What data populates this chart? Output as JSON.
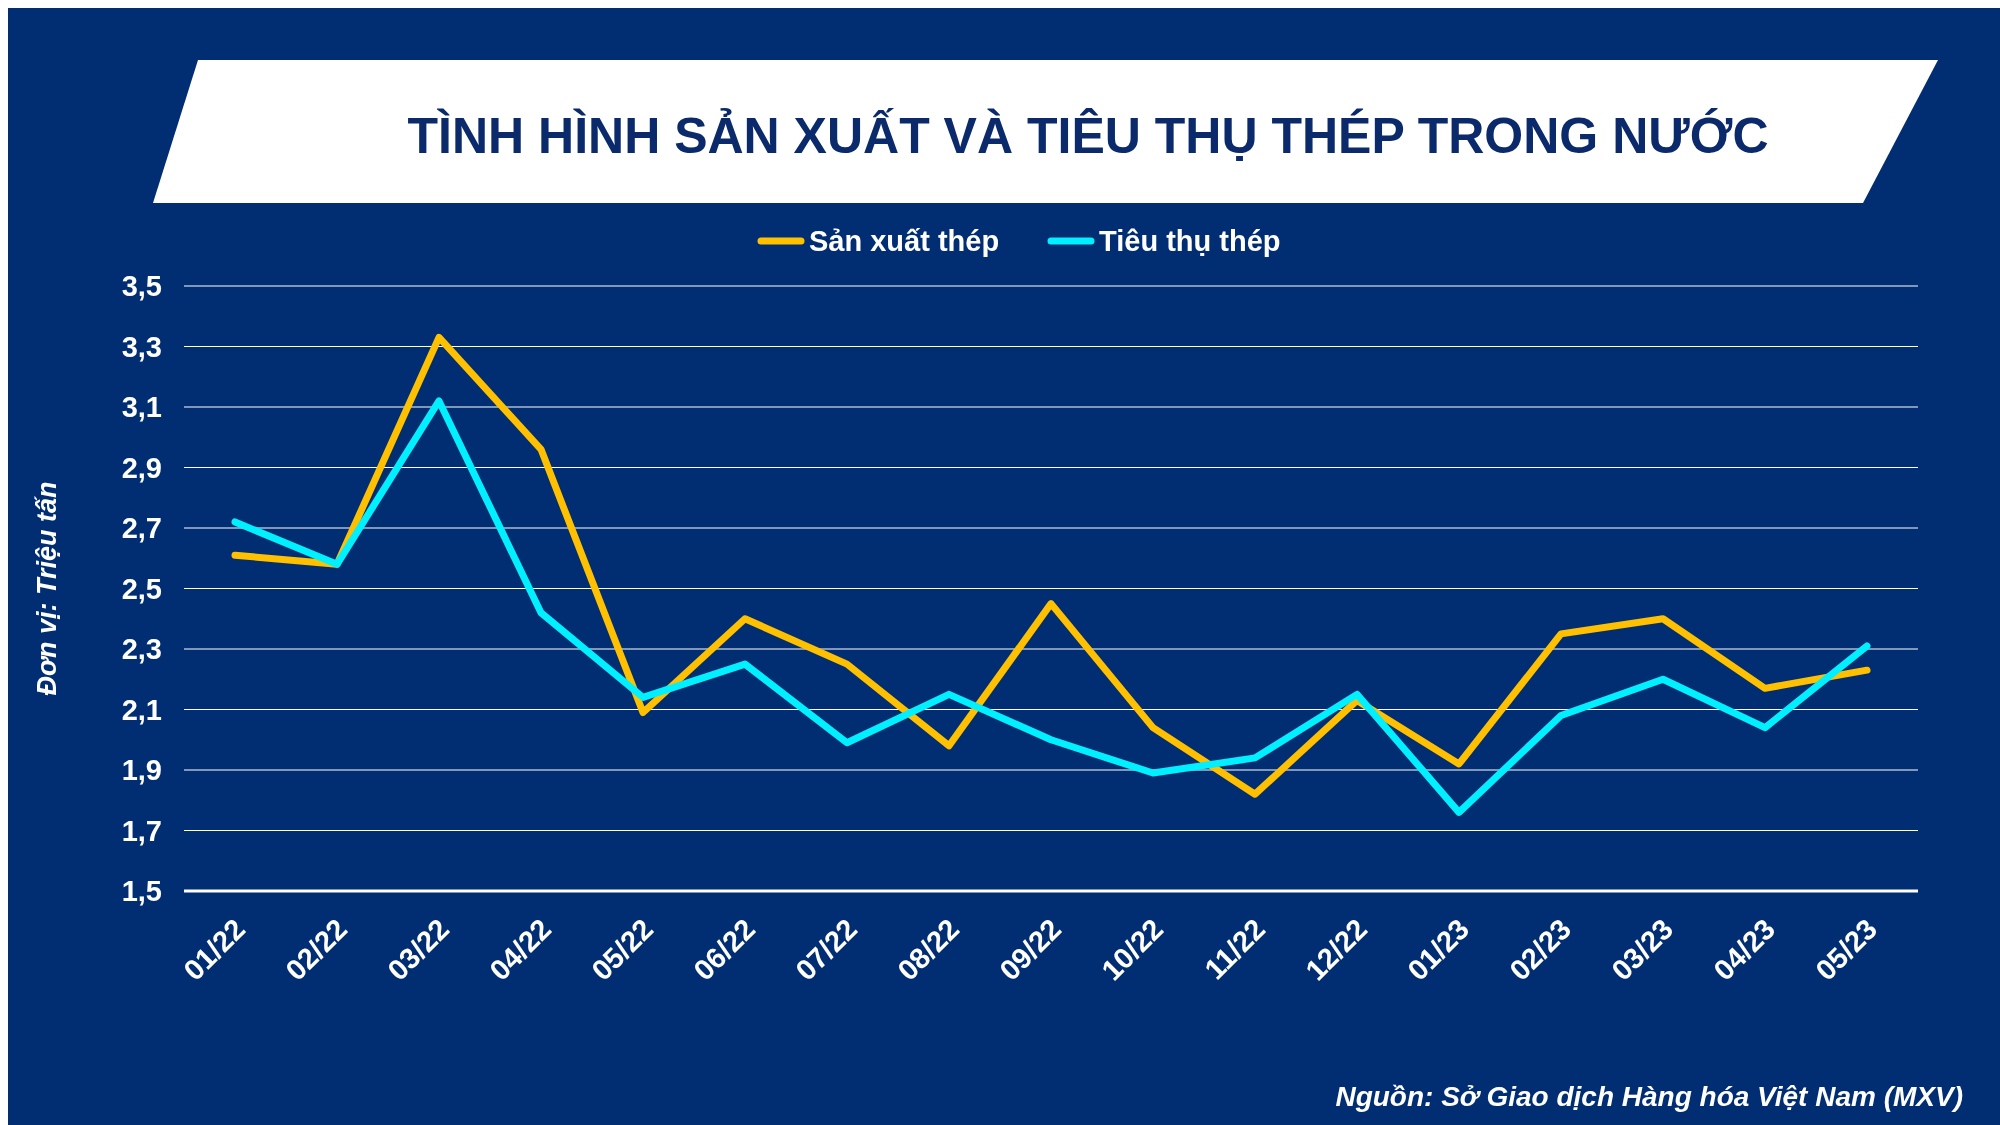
{
  "chart_data": {
    "type": "line",
    "title": "TÌNH HÌNH SẢN XUẤT VÀ TIÊU THỤ THÉP TRONG NƯỚC",
    "ylabel": "Đơn vị: Triệu tấn",
    "categories": [
      "01/22",
      "02/22",
      "03/22",
      "04/22",
      "05/22",
      "06/22",
      "07/22",
      "08/22",
      "09/22",
      "10/22",
      "11/22",
      "12/22",
      "01/23",
      "02/23",
      "03/23",
      "04/23",
      "05/23"
    ],
    "series": [
      {
        "name": "Sản xuất thép",
        "color": "#ffc000",
        "values": [
          2.61,
          2.58,
          3.33,
          2.96,
          2.09,
          2.4,
          2.25,
          1.98,
          2.45,
          2.04,
          1.82,
          2.13,
          1.92,
          2.35,
          2.4,
          2.17,
          2.23
        ]
      },
      {
        "name": "Tiêu thụ thép",
        "color": "#00f0ff",
        "values": [
          2.72,
          2.58,
          3.12,
          2.42,
          2.14,
          2.25,
          1.99,
          2.15,
          2.0,
          1.89,
          1.94,
          2.15,
          1.76,
          2.08,
          2.2,
          2.04,
          2.31
        ]
      }
    ],
    "ylim": [
      1.5,
      3.5
    ],
    "yticks": [
      {
        "value": 1.5,
        "label": "1,5"
      },
      {
        "value": 1.7,
        "label": "1,7"
      },
      {
        "value": 1.9,
        "label": "1,9"
      },
      {
        "value": 2.1,
        "label": "2,1"
      },
      {
        "value": 2.3,
        "label": "2,3"
      },
      {
        "value": 2.5,
        "label": "2,5"
      },
      {
        "value": 2.7,
        "label": "2,7"
      },
      {
        "value": 2.9,
        "label": "2,9"
      },
      {
        "value": 3.1,
        "label": "3,1"
      },
      {
        "value": 3.3,
        "label": "3,3"
      },
      {
        "value": 3.5,
        "label": "3,5"
      }
    ],
    "grid": "y",
    "legend": "top",
    "line_style": "solid",
    "marker": "none",
    "annotations": [
      "Nguồn: Sở Giao dịch Hàng hóa Việt Nam (MXV)"
    ]
  }
}
